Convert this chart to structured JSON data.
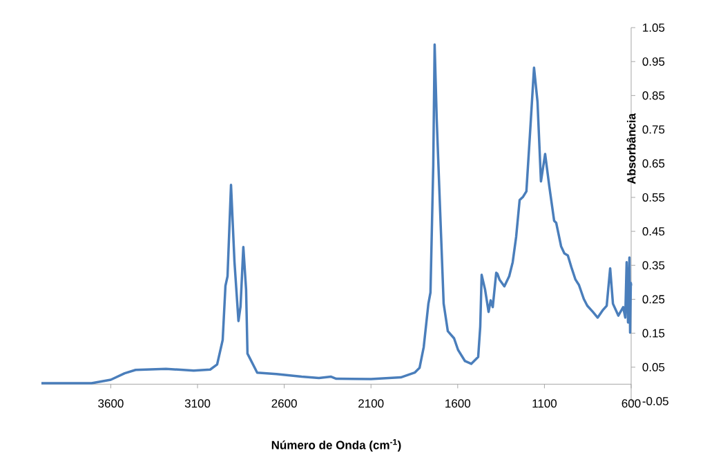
{
  "chart_data": {
    "type": "line",
    "xlabel": "Número de Onda (cm$^{-1}$)",
    "ylabel": "Absorbância",
    "x": [
      4000,
      3711,
      3600,
      3520,
      3457,
      3282,
      3122,
      3027,
      2987,
      2955,
      2939,
      2927,
      2907,
      2887,
      2864,
      2852,
      2836,
      2820,
      2812,
      2756,
      2645,
      2500,
      2400,
      2330,
      2300,
      2100,
      1928,
      1848,
      1820,
      1796,
      1769,
      1757,
      1741,
      1733,
      1721,
      1701,
      1681,
      1657,
      1621,
      1598,
      1558,
      1522,
      1482,
      1470,
      1462,
      1442,
      1422,
      1410,
      1398,
      1378,
      1371,
      1359,
      1331,
      1303,
      1283,
      1263,
      1243,
      1223,
      1204,
      1184,
      1160,
      1140,
      1120,
      1096,
      1072,
      1044,
      1032,
      1004,
      985,
      965,
      945,
      921,
      901,
      873,
      853,
      821,
      793,
      765,
      741,
      721,
      705,
      674,
      646,
      634,
      626,
      618,
      610,
      606,
      602,
      600
    ],
    "values": [
      0.003,
      0.003,
      0.013,
      0.032,
      0.042,
      0.045,
      0.04,
      0.043,
      0.058,
      0.13,
      0.29,
      0.318,
      0.587,
      0.36,
      0.186,
      0.229,
      0.404,
      0.278,
      0.09,
      0.034,
      0.03,
      0.022,
      0.018,
      0.022,
      0.016,
      0.015,
      0.02,
      0.034,
      0.048,
      0.109,
      0.237,
      0.27,
      0.643,
      1.0,
      0.78,
      0.507,
      0.237,
      0.156,
      0.135,
      0.101,
      0.068,
      0.06,
      0.08,
      0.17,
      0.322,
      0.278,
      0.213,
      0.247,
      0.227,
      0.328,
      0.325,
      0.308,
      0.288,
      0.318,
      0.359,
      0.434,
      0.542,
      0.552,
      0.568,
      0.731,
      0.932,
      0.832,
      0.597,
      0.678,
      0.583,
      0.481,
      0.475,
      0.406,
      0.385,
      0.379,
      0.345,
      0.308,
      0.292,
      0.251,
      0.231,
      0.213,
      0.196,
      0.217,
      0.231,
      0.341,
      0.237,
      0.202,
      0.227,
      0.196,
      0.359,
      0.182,
      0.373,
      0.152,
      0.298,
      0.29
    ],
    "color": "#4a7ebb",
    "line_style": "solid",
    "marker": "none",
    "grid": false,
    "xlim": [
      4000,
      600
    ],
    "xticks": [
      3600,
      3100,
      2600,
      2100,
      1600,
      1100,
      600
    ],
    "ylim": [
      -0.05,
      1.05
    ],
    "yticks": [
      {
        "value": -0.05,
        "label": "-0.05"
      },
      {
        "value": 0.05,
        "label": "0.05"
      },
      {
        "value": 0.15,
        "label": "0.15"
      },
      {
        "value": 0.25,
        "label": "0.25"
      },
      {
        "value": 0.35,
        "label": "0.35"
      },
      {
        "value": 0.45,
        "label": "0.45"
      },
      {
        "value": 0.55,
        "label": "0.55"
      },
      {
        "value": 0.65,
        "label": "0.65"
      },
      {
        "value": 0.75,
        "label": "0.75"
      },
      {
        "value": 0.85,
        "label": "0.85"
      },
      {
        "value": 0.95,
        "label": "0.95"
      },
      {
        "value": 1.05,
        "label": "1.05"
      }
    ]
  }
}
